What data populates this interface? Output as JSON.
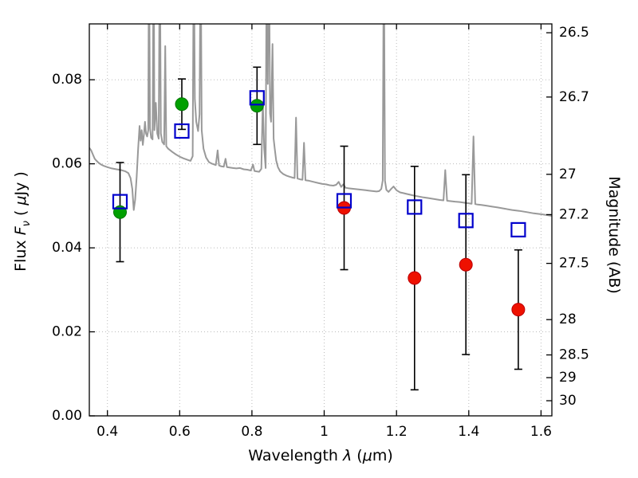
{
  "chart_data": {
    "type": "line",
    "title": "",
    "xlabel_parts": {
      "p1": "Wavelength ",
      "p2": "λ",
      "p3": " (",
      "p4": "μ",
      "p5": "m)"
    },
    "ylabel_left_parts": {
      "p1": "Flux ",
      "p2": "F",
      "p3": "ν",
      "p4": " ( ",
      "p5": "μ",
      "p6": "Jy )"
    },
    "ylabel_right": "Magnitude (AB)",
    "xlim": [
      0.35,
      1.63
    ],
    "ylim": [
      0,
      0.0933
    ],
    "xticks": [
      {
        "v": 0.4,
        "label": "0.4"
      },
      {
        "v": 0.6,
        "label": "0.6"
      },
      {
        "v": 0.8,
        "label": "0.8"
      },
      {
        "v": 1.0,
        "label": "1"
      },
      {
        "v": 1.2,
        "label": "1.2"
      },
      {
        "v": 1.4,
        "label": "1.4"
      },
      {
        "v": 1.6,
        "label": "1.6"
      }
    ],
    "yticks_left": [
      {
        "v": 0.0,
        "label": "0.00"
      },
      {
        "v": 0.02,
        "label": "0.02"
      },
      {
        "v": 0.04,
        "label": "0.04"
      },
      {
        "v": 0.06,
        "label": "0.06"
      },
      {
        "v": 0.08,
        "label": "0.08"
      }
    ],
    "yticks_right": [
      {
        "flux": 0.0912,
        "label": "26.5"
      },
      {
        "flux": 0.0759,
        "label": "26.7"
      },
      {
        "flux": 0.0575,
        "label": "27"
      },
      {
        "flux": 0.0479,
        "label": "27.2"
      },
      {
        "flux": 0.0363,
        "label": "27.5"
      },
      {
        "flux": 0.0229,
        "label": "28"
      },
      {
        "flux": 0.0145,
        "label": "28.5"
      },
      {
        "flux": 0.0091,
        "label": "29"
      },
      {
        "flux": 0.0036,
        "label": "30"
      }
    ],
    "grid": {
      "show": true,
      "style": "dotted",
      "color": "#bbbbbb"
    },
    "colors": {
      "spectrum": "#999999",
      "model_squares": "#0000cc",
      "optical_points": "#00a000",
      "ir_points": "#ee1100",
      "errorbars": "#000000",
      "axes": "#000000"
    },
    "series": [
      {
        "name": "model-spectrum",
        "kind": "line",
        "color_key": "spectrum",
        "points": [
          [
            0.35,
            0.0638
          ],
          [
            0.355,
            0.0632
          ],
          [
            0.36,
            0.0622
          ],
          [
            0.365,
            0.0612
          ],
          [
            0.37,
            0.0607
          ],
          [
            0.376,
            0.0602
          ],
          [
            0.383,
            0.0598
          ],
          [
            0.39,
            0.0595
          ],
          [
            0.4,
            0.0592
          ],
          [
            0.412,
            0.0589
          ],
          [
            0.425,
            0.0587
          ],
          [
            0.438,
            0.0585
          ],
          [
            0.45,
            0.0582
          ],
          [
            0.458,
            0.0578
          ],
          [
            0.464,
            0.0566
          ],
          [
            0.469,
            0.054
          ],
          [
            0.473,
            0.049
          ],
          [
            0.477,
            0.0515
          ],
          [
            0.481,
            0.057
          ],
          [
            0.485,
            0.0635
          ],
          [
            0.489,
            0.069
          ],
          [
            0.492,
            0.0655
          ],
          [
            0.495,
            0.068
          ],
          [
            0.498,
            0.0645
          ],
          [
            0.501,
            0.0668
          ],
          [
            0.504,
            0.07
          ],
          [
            0.507,
            0.0672
          ],
          [
            0.51,
            0.0665
          ],
          [
            0.513,
            0.068
          ],
          [
            0.515,
            0.115
          ],
          [
            0.518,
            0.0685
          ],
          [
            0.521,
            0.0662
          ],
          [
            0.525,
            0.0658
          ],
          [
            0.528,
            0.115
          ],
          [
            0.53,
            0.068
          ],
          [
            0.534,
            0.0745
          ],
          [
            0.538,
            0.0672
          ],
          [
            0.542,
            0.066
          ],
          [
            0.545,
            0.115
          ],
          [
            0.548,
            0.0672
          ],
          [
            0.552,
            0.0652
          ],
          [
            0.557,
            0.0646
          ],
          [
            0.56,
            0.088
          ],
          [
            0.563,
            0.0642
          ],
          [
            0.568,
            0.0636
          ],
          [
            0.574,
            0.0632
          ],
          [
            0.58,
            0.0628
          ],
          [
            0.59,
            0.0622
          ],
          [
            0.6,
            0.0617
          ],
          [
            0.61,
            0.0613
          ],
          [
            0.62,
            0.061
          ],
          [
            0.63,
            0.0607
          ],
          [
            0.636,
            0.0618
          ],
          [
            0.639,
            0.115
          ],
          [
            0.642,
            0.0755
          ],
          [
            0.646,
            0.07
          ],
          [
            0.651,
            0.0678
          ],
          [
            0.655,
            0.0718
          ],
          [
            0.658,
            0.115
          ],
          [
            0.661,
            0.068
          ],
          [
            0.666,
            0.0636
          ],
          [
            0.673,
            0.0615
          ],
          [
            0.681,
            0.0604
          ],
          [
            0.69,
            0.06
          ],
          [
            0.7,
            0.0597
          ],
          [
            0.705,
            0.0632
          ],
          [
            0.709,
            0.0596
          ],
          [
            0.715,
            0.0594
          ],
          [
            0.722,
            0.0593
          ],
          [
            0.727,
            0.0612
          ],
          [
            0.731,
            0.0592
          ],
          [
            0.738,
            0.0591
          ],
          [
            0.747,
            0.059
          ],
          [
            0.757,
            0.0589
          ],
          [
            0.767,
            0.059
          ],
          [
            0.777,
            0.0587
          ],
          [
            0.787,
            0.0586
          ],
          [
            0.797,
            0.0584
          ],
          [
            0.803,
            0.0598
          ],
          [
            0.807,
            0.0583
          ],
          [
            0.813,
            0.0582
          ],
          [
            0.82,
            0.0581
          ],
          [
            0.826,
            0.0588
          ],
          [
            0.83,
            0.0748
          ],
          [
            0.834,
            0.0636
          ],
          [
            0.838,
            0.059
          ],
          [
            0.841,
            0.115
          ],
          [
            0.844,
            0.079
          ],
          [
            0.847,
            0.115
          ],
          [
            0.85,
            0.072
          ],
          [
            0.853,
            0.07
          ],
          [
            0.857,
            0.0885
          ],
          [
            0.86,
            0.066
          ],
          [
            0.863,
            0.0636
          ],
          [
            0.867,
            0.0608
          ],
          [
            0.872,
            0.0592
          ],
          [
            0.878,
            0.0582
          ],
          [
            0.886,
            0.0576
          ],
          [
            0.895,
            0.0572
          ],
          [
            0.905,
            0.0569
          ],
          [
            0.913,
            0.0567
          ],
          [
            0.918,
            0.0566
          ],
          [
            0.922,
            0.071
          ],
          [
            0.926,
            0.0565
          ],
          [
            0.933,
            0.0563
          ],
          [
            0.94,
            0.0562
          ],
          [
            0.944,
            0.065
          ],
          [
            0.948,
            0.0561
          ],
          [
            0.956,
            0.056
          ],
          [
            0.965,
            0.0558
          ],
          [
            0.975,
            0.0556
          ],
          [
            0.985,
            0.0554
          ],
          [
            0.995,
            0.0552
          ],
          [
            1.005,
            0.0551
          ],
          [
            1.015,
            0.0549
          ],
          [
            1.025,
            0.0548
          ],
          [
            1.033,
            0.055
          ],
          [
            1.04,
            0.0557
          ],
          [
            1.047,
            0.0545
          ],
          [
            1.053,
            0.0551
          ],
          [
            1.059,
            0.0543
          ],
          [
            1.066,
            0.0542
          ],
          [
            1.075,
            0.0541
          ],
          [
            1.085,
            0.054
          ],
          [
            1.095,
            0.0539
          ],
          [
            1.105,
            0.0538
          ],
          [
            1.115,
            0.0537
          ],
          [
            1.125,
            0.0536
          ],
          [
            1.135,
            0.0535
          ],
          [
            1.145,
            0.0534
          ],
          [
            1.152,
            0.0535
          ],
          [
            1.158,
            0.054
          ],
          [
            1.162,
            0.056
          ],
          [
            1.165,
            0.115
          ],
          [
            1.168,
            0.056
          ],
          [
            1.172,
            0.0538
          ],
          [
            1.178,
            0.0533
          ],
          [
            1.185,
            0.054
          ],
          [
            1.192,
            0.0546
          ],
          [
            1.2,
            0.0537
          ],
          [
            1.21,
            0.0532
          ],
          [
            1.22,
            0.053
          ],
          [
            1.23,
            0.0528
          ],
          [
            1.24,
            0.0526
          ],
          [
            1.25,
            0.0524
          ],
          [
            1.262,
            0.0522
          ],
          [
            1.275,
            0.052
          ],
          [
            1.29,
            0.0518
          ],
          [
            1.305,
            0.0516
          ],
          [
            1.32,
            0.0514
          ],
          [
            1.33,
            0.0513
          ],
          [
            1.335,
            0.0585
          ],
          [
            1.34,
            0.0512
          ],
          [
            1.35,
            0.0511
          ],
          [
            1.362,
            0.051
          ],
          [
            1.375,
            0.0509
          ],
          [
            1.39,
            0.0507
          ],
          [
            1.4,
            0.0506
          ],
          [
            1.408,
            0.0505
          ],
          [
            1.413,
            0.0665
          ],
          [
            1.418,
            0.0504
          ],
          [
            1.425,
            0.0503
          ],
          [
            1.435,
            0.0502
          ],
          [
            1.45,
            0.05
          ],
          [
            1.465,
            0.0498
          ],
          [
            1.48,
            0.0496
          ],
          [
            1.5,
            0.0493
          ],
          [
            1.52,
            0.049
          ],
          [
            1.54,
            0.0488
          ],
          [
            1.56,
            0.0485
          ],
          [
            1.58,
            0.0482
          ],
          [
            1.6,
            0.048
          ],
          [
            1.615,
            0.0478
          ],
          [
            1.63,
            0.0476
          ]
        ]
      },
      {
        "name": "observed-optical",
        "kind": "scatter-circle",
        "color_key": "optical_points",
        "edge": "#007700",
        "points": [
          {
            "x": 0.435,
            "y": 0.0485,
            "yerr": 0.0118
          },
          {
            "x": 0.606,
            "y": 0.0742,
            "yerr": 0.006
          },
          {
            "x": 0.814,
            "y": 0.0738,
            "yerr": 0.0092
          }
        ]
      },
      {
        "name": "observed-infrared",
        "kind": "scatter-circle",
        "color_key": "ir_points",
        "edge": "#bb0000",
        "points": [
          {
            "x": 1.055,
            "y": 0.0495,
            "yerr": 0.0147
          },
          {
            "x": 1.25,
            "y": 0.0328,
            "yerr": 0.0266
          },
          {
            "x": 1.392,
            "y": 0.036,
            "yerr": 0.0214
          },
          {
            "x": 1.537,
            "y": 0.0253,
            "yerr": 0.0142
          }
        ]
      },
      {
        "name": "model-photometry",
        "kind": "scatter-square",
        "color_key": "model_squares",
        "points": [
          {
            "x": 0.435,
            "y": 0.051
          },
          {
            "x": 0.606,
            "y": 0.0678
          },
          {
            "x": 0.814,
            "y": 0.0757
          },
          {
            "x": 1.055,
            "y": 0.0512
          },
          {
            "x": 1.25,
            "y": 0.0497
          },
          {
            "x": 1.392,
            "y": 0.0465
          },
          {
            "x": 1.537,
            "y": 0.0443
          }
        ]
      }
    ]
  }
}
